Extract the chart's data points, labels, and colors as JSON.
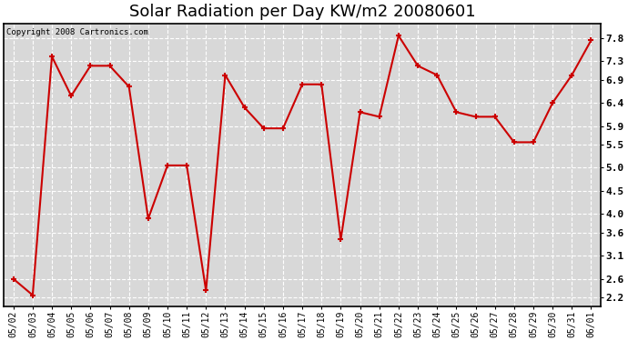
{
  "title": "Solar Radiation per Day KW/m2 20080601",
  "copyright": "Copyright 2008 Cartronics.com",
  "dates": [
    "05/02",
    "05/03",
    "05/04",
    "05/05",
    "05/06",
    "05/07",
    "05/08",
    "05/09",
    "05/10",
    "05/11",
    "05/12",
    "05/13",
    "05/14",
    "05/15",
    "05/16",
    "05/17",
    "05/18",
    "05/19",
    "05/20",
    "05/21",
    "05/22",
    "05/23",
    "05/24",
    "05/25",
    "05/26",
    "05/27",
    "05/28",
    "05/29",
    "05/30",
    "05/31",
    "06/01"
  ],
  "values": [
    2.6,
    2.25,
    7.4,
    6.55,
    7.2,
    7.2,
    6.75,
    3.9,
    5.05,
    5.05,
    2.35,
    7.0,
    6.3,
    5.85,
    5.85,
    6.8,
    6.8,
    3.45,
    6.2,
    6.1,
    7.85,
    7.2,
    7.0,
    6.2,
    6.1,
    6.1,
    5.55,
    5.55,
    6.4,
    7.0,
    7.75
  ],
  "line_color": "#cc0000",
  "marker": "+",
  "marker_size": 5,
  "line_width": 1.5,
  "bg_color": "#ffffff",
  "plot_bg_color": "#d8d8d8",
  "grid_color": "#ffffff",
  "ylim": [
    2.0,
    8.1
  ],
  "yticks": [
    2.2,
    2.6,
    3.1,
    3.6,
    4.0,
    4.5,
    5.0,
    5.5,
    5.9,
    6.4,
    6.9,
    7.3,
    7.8
  ],
  "title_fontsize": 13,
  "copyright_fontsize": 6.5,
  "tick_fontsize": 7
}
